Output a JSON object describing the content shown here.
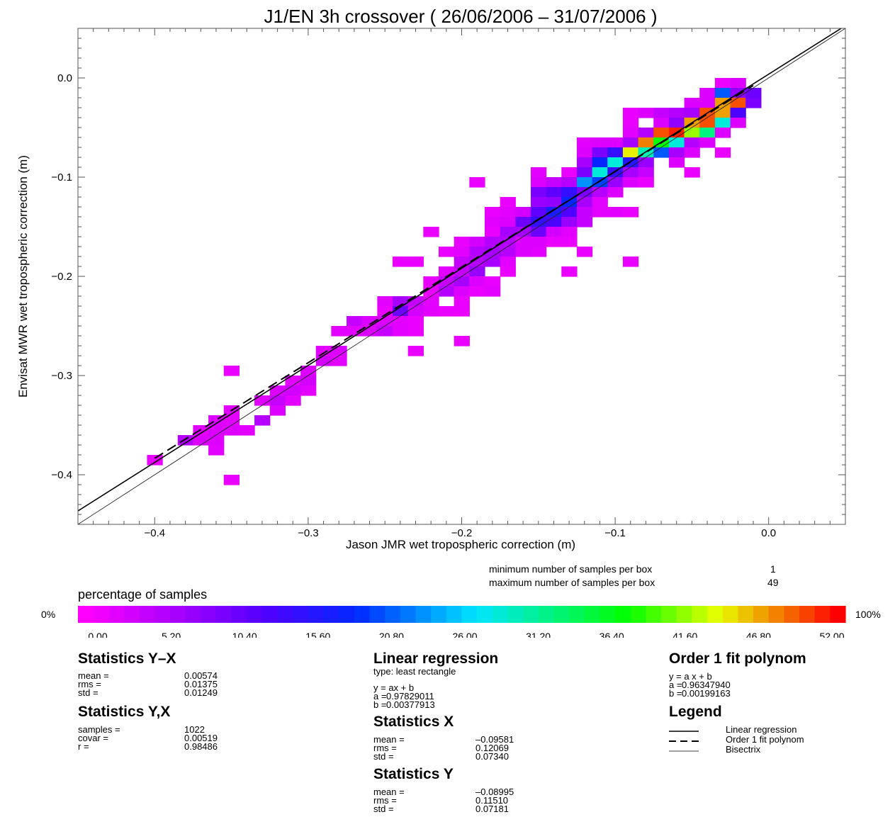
{
  "chart_data": {
    "type": "heatmap",
    "title": "J1/EN 3h crossover ( 26/06/2006 – 31/07/2006 )",
    "xlabel": "Jason JMR wet tropospheric correction (m)",
    "ylabel": "Envisat MWR wet tropospheric correction (m)",
    "xlim": [
      -0.45,
      0.05
    ],
    "ylim": [
      -0.45,
      0.05
    ],
    "x_ticks": [
      -0.4,
      -0.3,
      -0.2,
      -0.1,
      0.0
    ],
    "x_tick_labels": [
      "−0.4",
      "−0.3",
      "−0.2",
      "−0.1",
      "0.0"
    ],
    "y_ticks": [
      -0.4,
      -0.3,
      -0.2,
      -0.1,
      0.0
    ],
    "y_tick_labels": [
      "−0.4",
      "−0.3",
      "−0.2",
      "−0.1",
      "0.0"
    ],
    "bin_size": 0.01,
    "grid": false,
    "bins_x_y_pct": [
      [
        -0.03,
        -0.005,
        3
      ],
      [
        -0.02,
        -0.005,
        5
      ],
      [
        -0.04,
        -0.015,
        5
      ],
      [
        -0.03,
        -0.015,
        40
      ],
      [
        -0.02,
        -0.015,
        15
      ],
      [
        -0.01,
        -0.015,
        20
      ],
      [
        -0.05,
        -0.025,
        5
      ],
      [
        -0.04,
        -0.025,
        5
      ],
      [
        -0.03,
        -0.025,
        90
      ],
      [
        -0.02,
        -0.025,
        95
      ],
      [
        -0.01,
        -0.025,
        18
      ],
      [
        -0.09,
        -0.035,
        3
      ],
      [
        -0.08,
        -0.035,
        5
      ],
      [
        -0.07,
        -0.035,
        8
      ],
      [
        -0.06,
        -0.035,
        10
      ],
      [
        -0.05,
        -0.035,
        12
      ],
      [
        -0.04,
        -0.035,
        95
      ],
      [
        -0.03,
        -0.035,
        90
      ],
      [
        -0.02,
        -0.035,
        25
      ],
      [
        -0.09,
        -0.045,
        3
      ],
      [
        -0.07,
        -0.045,
        5
      ],
      [
        -0.06,
        -0.045,
        15
      ],
      [
        -0.05,
        -0.045,
        90
      ],
      [
        -0.04,
        -0.045,
        95
      ],
      [
        -0.03,
        -0.045,
        55
      ],
      [
        -0.02,
        -0.045,
        5
      ],
      [
        -0.09,
        -0.055,
        4
      ],
      [
        -0.08,
        -0.055,
        10
      ],
      [
        -0.07,
        -0.055,
        95
      ],
      [
        -0.06,
        -0.055,
        98
      ],
      [
        -0.05,
        -0.055,
        80
      ],
      [
        -0.04,
        -0.055,
        62
      ],
      [
        -0.03,
        -0.055,
        5
      ],
      [
        -0.12,
        -0.065,
        4
      ],
      [
        -0.11,
        -0.065,
        5
      ],
      [
        -0.1,
        -0.065,
        5
      ],
      [
        -0.09,
        -0.065,
        12
      ],
      [
        -0.08,
        -0.065,
        92
      ],
      [
        -0.07,
        -0.065,
        72
      ],
      [
        -0.06,
        -0.065,
        55
      ],
      [
        -0.05,
        -0.065,
        10
      ],
      [
        -0.04,
        -0.065,
        5
      ],
      [
        -0.12,
        -0.075,
        5
      ],
      [
        -0.11,
        -0.075,
        18
      ],
      [
        -0.1,
        -0.075,
        28
      ],
      [
        -0.09,
        -0.075,
        85
      ],
      [
        -0.08,
        -0.075,
        58
      ],
      [
        -0.07,
        -0.075,
        40
      ],
      [
        -0.06,
        -0.075,
        12
      ],
      [
        -0.05,
        -0.075,
        5
      ],
      [
        -0.03,
        -0.075,
        3
      ],
      [
        -0.12,
        -0.085,
        12
      ],
      [
        -0.11,
        -0.085,
        35
      ],
      [
        -0.1,
        -0.085,
        55
      ],
      [
        -0.09,
        -0.085,
        30
      ],
      [
        -0.08,
        -0.085,
        14
      ],
      [
        -0.06,
        -0.085,
        5
      ],
      [
        -0.15,
        -0.095,
        4
      ],
      [
        -0.13,
        -0.095,
        3
      ],
      [
        -0.12,
        -0.095,
        18
      ],
      [
        -0.11,
        -0.095,
        55
      ],
      [
        -0.1,
        -0.095,
        28
      ],
      [
        -0.09,
        -0.095,
        12
      ],
      [
        -0.08,
        -0.095,
        8
      ],
      [
        -0.05,
        -0.095,
        3
      ],
      [
        -0.19,
        -0.105,
        3
      ],
      [
        -0.15,
        -0.105,
        5
      ],
      [
        -0.14,
        -0.105,
        8
      ],
      [
        -0.13,
        -0.105,
        10
      ],
      [
        -0.12,
        -0.105,
        45
      ],
      [
        -0.11,
        -0.105,
        38
      ],
      [
        -0.1,
        -0.105,
        14
      ],
      [
        -0.09,
        -0.105,
        5
      ],
      [
        -0.08,
        -0.105,
        3
      ],
      [
        -0.15,
        -0.115,
        18
      ],
      [
        -0.14,
        -0.115,
        22
      ],
      [
        -0.13,
        -0.115,
        28
      ],
      [
        -0.12,
        -0.115,
        18
      ],
      [
        -0.11,
        -0.115,
        10
      ],
      [
        -0.1,
        -0.115,
        5
      ],
      [
        -0.17,
        -0.125,
        3
      ],
      [
        -0.15,
        -0.125,
        14
      ],
      [
        -0.14,
        -0.125,
        15
      ],
      [
        -0.13,
        -0.125,
        35
      ],
      [
        -0.12,
        -0.125,
        12
      ],
      [
        -0.11,
        -0.125,
        4
      ],
      [
        -0.18,
        -0.135,
        3
      ],
      [
        -0.17,
        -0.135,
        4
      ],
      [
        -0.16,
        -0.135,
        6
      ],
      [
        -0.15,
        -0.135,
        22
      ],
      [
        -0.14,
        -0.135,
        32
      ],
      [
        -0.13,
        -0.135,
        24
      ],
      [
        -0.12,
        -0.135,
        8
      ],
      [
        -0.11,
        -0.135,
        4
      ],
      [
        -0.1,
        -0.135,
        4
      ],
      [
        -0.09,
        -0.135,
        3
      ],
      [
        -0.18,
        -0.145,
        4
      ],
      [
        -0.17,
        -0.145,
        5
      ],
      [
        -0.16,
        -0.145,
        20
      ],
      [
        -0.15,
        -0.145,
        28
      ],
      [
        -0.14,
        -0.145,
        25
      ],
      [
        -0.13,
        -0.145,
        14
      ],
      [
        -0.12,
        -0.145,
        8
      ],
      [
        -0.22,
        -0.155,
        3
      ],
      [
        -0.18,
        -0.155,
        3
      ],
      [
        -0.17,
        -0.155,
        12
      ],
      [
        -0.16,
        -0.155,
        12
      ],
      [
        -0.15,
        -0.155,
        20
      ],
      [
        -0.14,
        -0.155,
        6
      ],
      [
        -0.13,
        -0.155,
        4
      ],
      [
        -0.2,
        -0.165,
        3
      ],
      [
        -0.19,
        -0.165,
        6
      ],
      [
        -0.18,
        -0.165,
        10
      ],
      [
        -0.17,
        -0.165,
        10
      ],
      [
        -0.16,
        -0.165,
        5
      ],
      [
        -0.15,
        -0.165,
        5
      ],
      [
        -0.14,
        -0.165,
        3
      ],
      [
        -0.13,
        -0.165,
        3
      ],
      [
        -0.21,
        -0.175,
        3
      ],
      [
        -0.2,
        -0.175,
        4
      ],
      [
        -0.19,
        -0.175,
        10
      ],
      [
        -0.18,
        -0.175,
        12
      ],
      [
        -0.17,
        -0.175,
        10
      ],
      [
        -0.16,
        -0.175,
        5
      ],
      [
        -0.15,
        -0.175,
        4
      ],
      [
        -0.12,
        -0.175,
        3
      ],
      [
        -0.24,
        -0.185,
        3
      ],
      [
        -0.23,
        -0.185,
        3
      ],
      [
        -0.2,
        -0.185,
        8
      ],
      [
        -0.19,
        -0.185,
        10
      ],
      [
        -0.18,
        -0.185,
        12
      ],
      [
        -0.17,
        -0.185,
        4
      ],
      [
        -0.09,
        -0.185,
        3
      ],
      [
        -0.21,
        -0.195,
        4
      ],
      [
        -0.2,
        -0.195,
        8
      ],
      [
        -0.19,
        -0.195,
        14
      ],
      [
        -0.17,
        -0.195,
        3
      ],
      [
        -0.13,
        -0.195,
        3
      ],
      [
        -0.22,
        -0.205,
        3
      ],
      [
        -0.21,
        -0.205,
        8
      ],
      [
        -0.2,
        -0.205,
        12
      ],
      [
        -0.19,
        -0.205,
        5
      ],
      [
        -0.18,
        -0.205,
        3
      ],
      [
        -0.22,
        -0.215,
        3
      ],
      [
        -0.21,
        -0.215,
        10
      ],
      [
        -0.2,
        -0.215,
        5
      ],
      [
        -0.19,
        -0.215,
        3
      ],
      [
        -0.18,
        -0.215,
        4
      ],
      [
        -0.25,
        -0.225,
        4
      ],
      [
        -0.24,
        -0.225,
        12
      ],
      [
        -0.23,
        -0.225,
        8
      ],
      [
        -0.22,
        -0.225,
        4
      ],
      [
        -0.2,
        -0.225,
        3
      ],
      [
        -0.25,
        -0.235,
        3
      ],
      [
        -0.24,
        -0.235,
        20
      ],
      [
        -0.23,
        -0.235,
        6
      ],
      [
        -0.22,
        -0.235,
        4
      ],
      [
        -0.21,
        -0.235,
        3
      ],
      [
        -0.2,
        -0.235,
        3
      ],
      [
        -0.27,
        -0.245,
        8
      ],
      [
        -0.26,
        -0.245,
        5
      ],
      [
        -0.25,
        -0.245,
        5
      ],
      [
        -0.24,
        -0.245,
        4
      ],
      [
        -0.23,
        -0.245,
        3
      ],
      [
        -0.28,
        -0.255,
        4
      ],
      [
        -0.27,
        -0.255,
        4
      ],
      [
        -0.26,
        -0.255,
        5
      ],
      [
        -0.25,
        -0.255,
        8
      ],
      [
        -0.24,
        -0.255,
        4
      ],
      [
        -0.23,
        -0.255,
        3
      ],
      [
        -0.2,
        -0.265,
        3
      ],
      [
        -0.29,
        -0.275,
        4
      ],
      [
        -0.28,
        -0.275,
        5
      ],
      [
        -0.23,
        -0.275,
        3
      ],
      [
        -0.29,
        -0.285,
        6
      ],
      [
        -0.28,
        -0.285,
        4
      ],
      [
        -0.35,
        -0.295,
        3
      ],
      [
        -0.3,
        -0.295,
        5
      ],
      [
        -0.31,
        -0.305,
        4
      ],
      [
        -0.3,
        -0.305,
        6
      ],
      [
        -0.32,
        -0.315,
        5
      ],
      [
        -0.31,
        -0.315,
        6
      ],
      [
        -0.3,
        -0.315,
        4
      ],
      [
        -0.33,
        -0.325,
        4
      ],
      [
        -0.32,
        -0.325,
        8
      ],
      [
        -0.31,
        -0.325,
        4
      ],
      [
        -0.35,
        -0.335,
        4
      ],
      [
        -0.32,
        -0.335,
        5
      ],
      [
        -0.36,
        -0.345,
        5
      ],
      [
        -0.35,
        -0.345,
        4
      ],
      [
        -0.33,
        -0.345,
        10
      ],
      [
        -0.37,
        -0.355,
        4
      ],
      [
        -0.36,
        -0.355,
        5
      ],
      [
        -0.35,
        -0.355,
        5
      ],
      [
        -0.34,
        -0.355,
        4
      ],
      [
        -0.38,
        -0.365,
        10
      ],
      [
        -0.37,
        -0.365,
        5
      ],
      [
        -0.36,
        -0.365,
        5
      ],
      [
        -0.36,
        -0.375,
        4
      ],
      [
        -0.4,
        -0.385,
        3
      ],
      [
        -0.35,
        -0.405,
        3
      ]
    ]
  },
  "sample_info": {
    "min_label": "minimum number of samples per box",
    "min_value": "1",
    "max_label": "maximum number of samples per box",
    "max_value": "49"
  },
  "colorbar": {
    "title": "percentage of samples",
    "left_label": "0%",
    "right_label": "100%",
    "tick_labels": [
      "0.00",
      "5.20",
      "10.40",
      "15.60",
      "20.80",
      "26.00",
      "31.20",
      "36.40",
      "41.60",
      "46.80",
      "52.00"
    ]
  },
  "stats_yx": {
    "title": "Statistics Y–X",
    "rows": [
      {
        "k": "mean =",
        "v": "0.00574"
      },
      {
        "k": "rms =",
        "v": "0.01375"
      },
      {
        "k": "std =",
        "v": "0.01249"
      }
    ]
  },
  "stats_y_x": {
    "title": "Statistics Y,X",
    "rows": [
      {
        "k": "samples =",
        "v": "1022"
      },
      {
        "k": "covar =",
        "v": "0.00519"
      },
      {
        "k": "r =",
        "v": "0.98486"
      }
    ]
  },
  "linreg": {
    "title": "Linear regression",
    "type_text": "type: least rectangle",
    "eq": "y = ax + b",
    "rows": [
      {
        "k": "a =",
        "v": "0.97829011"
      },
      {
        "k": "b =",
        "v": "0.00377913"
      }
    ]
  },
  "stats_x": {
    "title": "Statistics X",
    "rows": [
      {
        "k": "mean =",
        "v": "–0.09581"
      },
      {
        "k": "rms =",
        "v": "0.12069"
      },
      {
        "k": "std =",
        "v": "0.07340"
      }
    ]
  },
  "stats_y": {
    "title": "Statistics Y",
    "rows": [
      {
        "k": "mean =",
        "v": "–0.08995"
      },
      {
        "k": "rms =",
        "v": "0.11510"
      },
      {
        "k": "std =",
        "v": "0.07181"
      }
    ]
  },
  "polyfit": {
    "title": "Order 1 fit polynom",
    "eq": "y = a x + b",
    "rows": [
      {
        "k": "a =",
        "v": "0.96347940"
      },
      {
        "k": "b =",
        "v": "0.00199163"
      }
    ]
  },
  "legend": {
    "title": "Legend",
    "items": [
      "Linear regression",
      "Order 1 fit polynom",
      "Bisectrix"
    ]
  },
  "lines": {
    "regression": {
      "a": 0.97829011,
      "b": 0.00377913
    },
    "polyfit": {
      "a": 0.9634794,
      "b": 0.00199163
    }
  }
}
